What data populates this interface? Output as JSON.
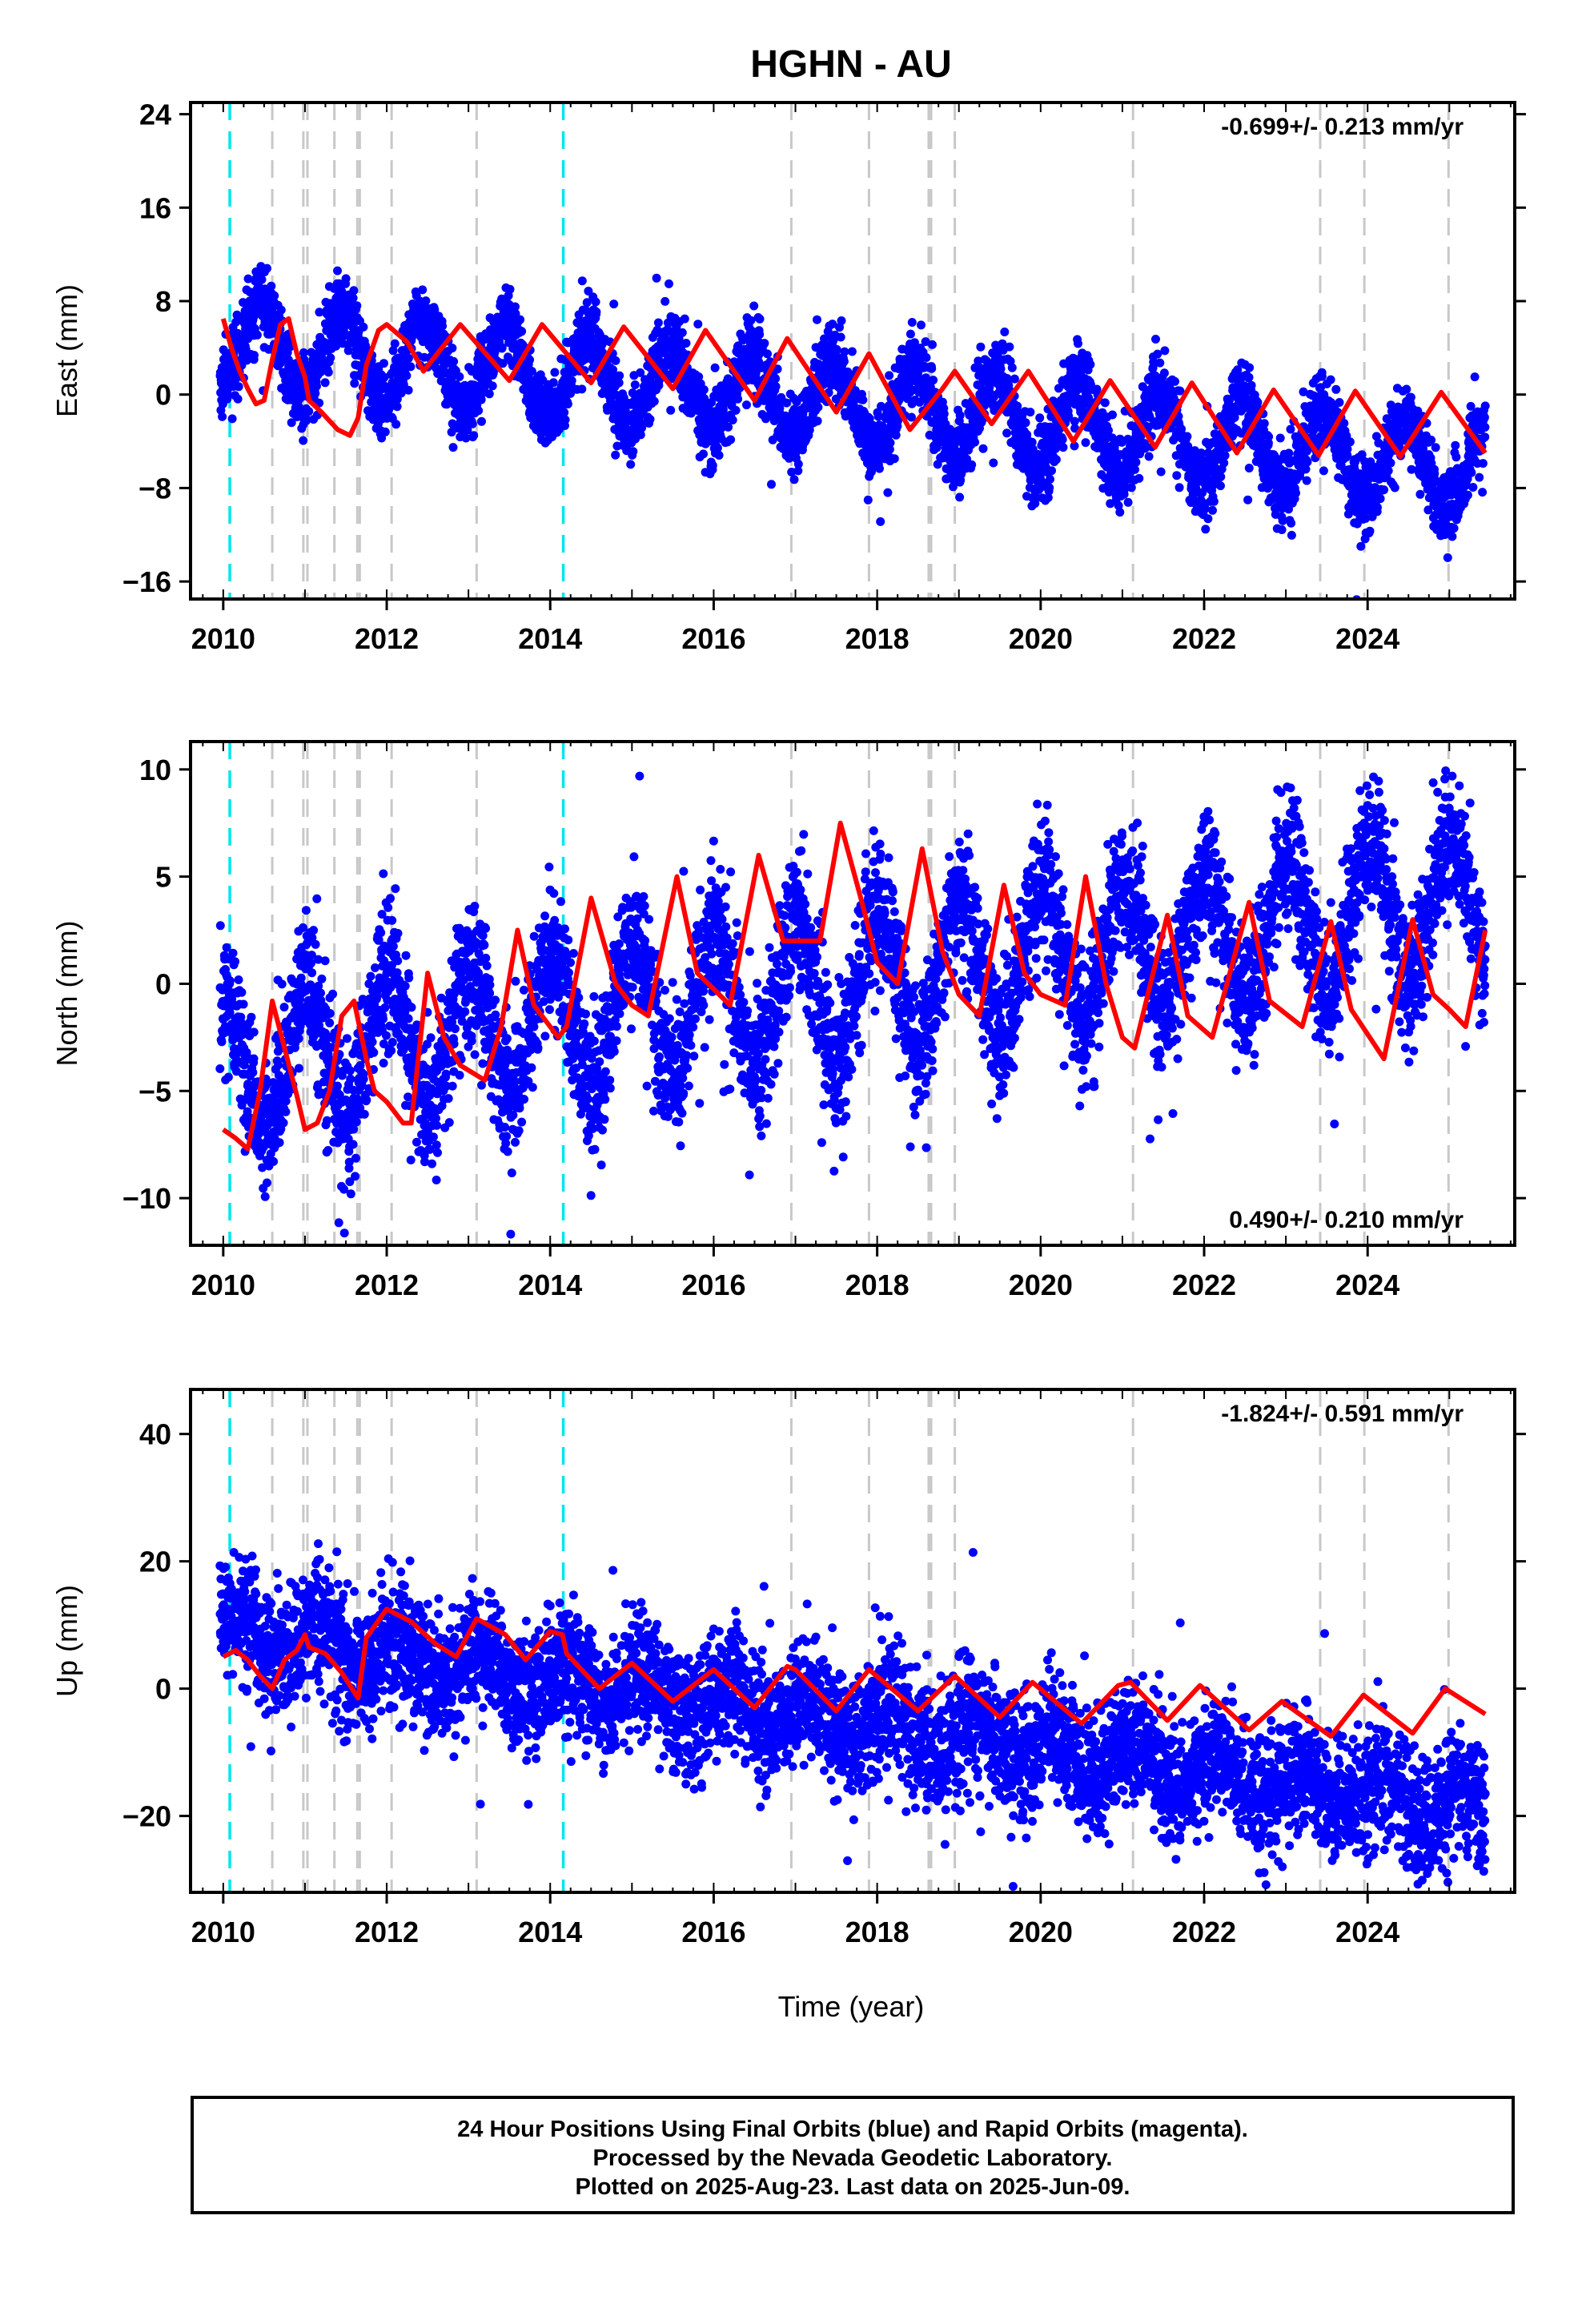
{
  "title": "HGHN - AU",
  "xlabel": "Time (year)",
  "colors": {
    "points": "#0000ff",
    "fit": "#ff0000",
    "equipment_change": "#c8c8c8",
    "earthquake": "#00e5ee"
  },
  "footer": {
    "line1": "24 Hour Positions Using Final Orbits (blue) and Rapid Orbits (magenta).",
    "line2": "Processed by the Nevada Geodetic Laboratory.",
    "line3": "Plotted on 2025-Aug-23. Last data on 2025-Jun-09."
  },
  "chart_data": [
    {
      "type": "scatter",
      "component": "east",
      "ylabel": "East (mm)",
      "rate_label": "-0.699+/- 0.213 mm/yr",
      "rate_label_position": "top-right",
      "xlim": [
        2009.6,
        2025.8
      ],
      "ylim": [
        -17.5,
        25
      ],
      "xticks": [
        2010,
        2012,
        2014,
        2016,
        2018,
        2020,
        2022,
        2024
      ],
      "yticks": [
        -16,
        -8,
        0,
        8,
        16,
        24
      ],
      "scatter_params": {
        "x_start": 2009.96,
        "x_end": 2025.44,
        "trend_mm_per_yr": -0.699,
        "offset_mm": 4.5,
        "annual_amp_mm": 3.6,
        "annual_phase": -1.3,
        "noise_mm": 1.6
      },
      "fit_curve": {
        "x": [
          2010.0,
          2010.1,
          2010.2,
          2010.3,
          2010.4,
          2010.5,
          2010.6,
          2010.7,
          2010.8,
          2010.9,
          2011.0,
          2011.05,
          2011.2,
          2011.4,
          2011.55,
          2011.65,
          2011.75,
          2011.9,
          2012.0,
          2012.25,
          2012.45,
          2012.9,
          2013.5,
          2013.9,
          2014.5,
          2014.9,
          2015.5,
          2015.9,
          2016.5,
          2016.9,
          2017.5,
          2017.9,
          2018.4,
          2018.8,
          2018.95,
          2019.4,
          2019.85,
          2020.4,
          2020.85,
          2021.4,
          2021.85,
          2022.4,
          2022.85,
          2023.4,
          2023.85,
          2024.4,
          2024.9,
          2025.44
        ],
        "y": [
          6.5,
          4.0,
          2.0,
          0.5,
          -0.8,
          -0.5,
          3.0,
          6.0,
          6.5,
          3.5,
          1.5,
          -0.5,
          -1.5,
          -3.0,
          -3.5,
          -2.0,
          2.5,
          5.5,
          6.0,
          4.5,
          2.0,
          6.0,
          1.2,
          6.0,
          1.0,
          5.8,
          0.5,
          5.5,
          -0.5,
          4.8,
          -1.5,
          3.5,
          -3.0,
          0.5,
          2.0,
          -2.5,
          2.0,
          -4.0,
          1.2,
          -4.5,
          1.0,
          -5.0,
          0.4,
          -5.2,
          0.3,
          -5.3,
          0.2,
          -5.0
        ]
      }
    },
    {
      "type": "scatter",
      "component": "north",
      "ylabel": "North (mm)",
      "rate_label": "0.490+/- 0.210 mm/yr",
      "rate_label_position": "bottom-right",
      "xlim": [
        2009.6,
        2025.8
      ],
      "ylim": [
        -12.2,
        11.3
      ],
      "xticks": [
        2010,
        2012,
        2014,
        2016,
        2018,
        2020,
        2022,
        2024
      ],
      "yticks": [
        -10,
        -5,
        0,
        5,
        10
      ],
      "scatter_params": {
        "x_start": 2009.96,
        "x_end": 2025.44,
        "trend_mm_per_yr": 0.49,
        "offset_mm": -3.8,
        "annual_amp_mm": 3.2,
        "annual_phase": 1.5,
        "noise_mm": 1.6
      },
      "fit_curve": {
        "x": [
          2010.0,
          2010.15,
          2010.3,
          2010.45,
          2010.6,
          2010.75,
          2010.9,
          2011.0,
          2011.15,
          2011.3,
          2011.45,
          2011.6,
          2011.75,
          2011.85,
          2012.0,
          2012.2,
          2012.3,
          2012.5,
          2012.7,
          2012.9,
          2013.2,
          2013.4,
          2013.6,
          2013.8,
          2014.1,
          2014.2,
          2014.5,
          2014.8,
          2015.0,
          2015.2,
          2015.55,
          2015.8,
          2016.2,
          2016.55,
          2016.85,
          2017.0,
          2017.3,
          2017.55,
          2017.8,
          2018.0,
          2018.25,
          2018.55,
          2018.8,
          2019.0,
          2019.25,
          2019.55,
          2019.8,
          2020.0,
          2020.3,
          2020.55,
          2020.8,
          2021.0,
          2021.15,
          2021.55,
          2021.8,
          2022.1,
          2022.55,
          2022.8,
          2023.2,
          2023.55,
          2023.8,
          2024.2,
          2024.55,
          2024.8,
          2025.0,
          2025.2,
          2025.44
        ],
        "y": [
          -6.8,
          -7.2,
          -7.7,
          -5.0,
          -0.8,
          -3.0,
          -5.2,
          -6.8,
          -6.5,
          -5.0,
          -1.5,
          -0.8,
          -3.5,
          -5.0,
          -5.5,
          -6.5,
          -6.5,
          0.5,
          -2.5,
          -3.8,
          -4.5,
          -2.0,
          2.5,
          -1.0,
          -2.5,
          -2.0,
          4.0,
          0.0,
          -1.0,
          -1.5,
          5.0,
          0.5,
          -1.0,
          6.0,
          2.0,
          2.0,
          2.0,
          7.5,
          4.0,
          1.0,
          0.0,
          6.3,
          1.5,
          -0.5,
          -1.5,
          4.6,
          0.5,
          -0.5,
          -1.0,
          5.0,
          0.0,
          -2.5,
          -3.0,
          3.2,
          -1.5,
          -2.5,
          3.8,
          -0.8,
          -2.0,
          2.9,
          -1.2,
          -3.5,
          3.0,
          -0.5,
          -1.2,
          -2.0,
          2.5
        ]
      }
    },
    {
      "type": "scatter",
      "component": "up",
      "ylabel": "Up (mm)",
      "rate_label": "-1.824+/- 0.591 mm/yr",
      "rate_label_position": "top-right",
      "xlim": [
        2009.6,
        2025.8
      ],
      "ylim": [
        -32,
        47
      ],
      "xticks": [
        2010,
        2012,
        2014,
        2016,
        2018,
        2020,
        2022,
        2024
      ],
      "yticks": [
        -20,
        0,
        20,
        40
      ],
      "scatter_params": {
        "x_start": 2009.96,
        "x_end": 2025.44,
        "trend_mm_per_yr": -1.824,
        "offset_mm": 9.0,
        "annual_amp_mm": 3.0,
        "annual_phase": 0.5,
        "noise_mm": 4.8
      },
      "fit_curve": {
        "x": [
          2010.0,
          2010.15,
          2010.3,
          2010.45,
          2010.6,
          2010.75,
          2010.9,
          2011.0,
          2011.05,
          2011.25,
          2011.45,
          2011.65,
          2011.75,
          2012.0,
          2012.3,
          2012.6,
          2012.85,
          2013.1,
          2013.45,
          2013.7,
          2014.0,
          2014.15,
          2014.2,
          2014.6,
          2015.0,
          2015.5,
          2016.0,
          2016.5,
          2016.9,
          2017.0,
          2017.5,
          2017.9,
          2018.5,
          2018.95,
          2019.5,
          2019.9,
          2020.5,
          2020.95,
          2021.1,
          2021.55,
          2021.95,
          2022.55,
          2022.95,
          2023.55,
          2023.95,
          2024.55,
          2024.95,
          2025.44
        ],
        "y": [
          5.0,
          6.0,
          4.5,
          2.0,
          0.0,
          4.5,
          6.0,
          8.5,
          6.5,
          5.5,
          2.5,
          -1.5,
          8.0,
          12.5,
          10.5,
          7.0,
          5.0,
          11.0,
          8.5,
          4.5,
          9.0,
          8.5,
          5.5,
          0.0,
          4.0,
          -2.0,
          3.0,
          -3.0,
          3.5,
          3.0,
          -3.5,
          3.0,
          -3.5,
          2.0,
          -4.5,
          1.0,
          -5.5,
          0.5,
          1.0,
          -5.0,
          0.5,
          -6.5,
          -2.0,
          -7.5,
          -1.0,
          -7.0,
          0.0,
          -4.0
        ]
      }
    }
  ],
  "event_lines": {
    "earthquake": [
      2010.08,
      2014.16
    ],
    "equipment_change": [
      2010.6,
      2010.98,
      2011.03,
      2011.36,
      2011.64,
      2011.67,
      2012.06,
      2013.1,
      2016.95,
      2017.9,
      2018.63,
      2018.66,
      2018.95,
      2021.13,
      2023.42,
      2023.96,
      2024.99
    ]
  }
}
